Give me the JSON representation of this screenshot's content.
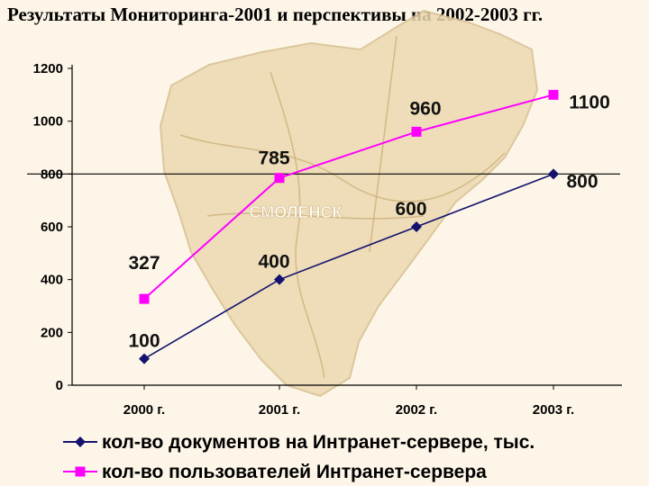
{
  "title": "Результаты Мониторинга-2001 и  перспективы на 2002-2003 гг.",
  "map_watermark_label": "СМОЛЕНСК",
  "colors": {
    "series_documents": "#14126e",
    "series_users": "#ff00ff",
    "background": "#fdf6e8",
    "map_fill": "#ecd9b0"
  },
  "chart_data": {
    "type": "line",
    "categories": [
      "2000 г.",
      "2001 г.",
      "2002 г.",
      "2003 г."
    ],
    "ylim": [
      0,
      1200
    ],
    "yticks": [
      "0",
      "200",
      "400",
      "600",
      "800",
      "1000",
      "1200"
    ],
    "grid": "horizontal line at 800",
    "legend_position": "bottom",
    "series": [
      {
        "name": "кол-во документов на Интранет-сервере, тыс.",
        "values": [
          100,
          400,
          600,
          800
        ],
        "labels": [
          "100",
          "400",
          "600",
          "800"
        ],
        "marker": "diamond",
        "color": "#14126e"
      },
      {
        "name": "кол-во пользователей Интранет-сервера",
        "values": [
          327,
          785,
          960,
          1100
        ],
        "labels": [
          "327",
          "785",
          "960",
          "1100"
        ],
        "marker": "square",
        "color": "#ff00ff"
      }
    ]
  }
}
